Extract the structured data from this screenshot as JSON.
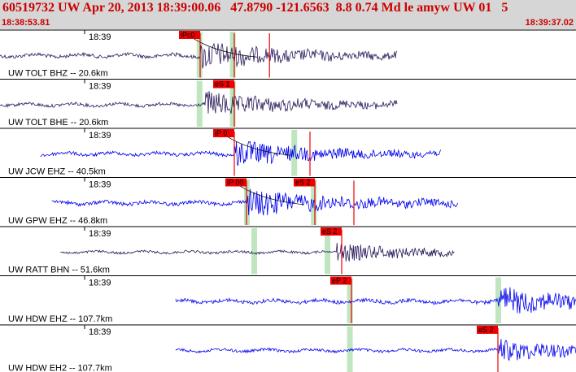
{
  "header": {
    "title": "60519732 UW Apr 20, 2013 18:39:00.06   47.8790 -121.6563  8.8 0.74 Md le amyw UW 01   5",
    "start_time": "18:38:53.81",
    "end_time": "18:39:37.02"
  },
  "colors": {
    "header_bg": "#d6d6d6",
    "header_text": "#cc0000",
    "trace_dark": "#2a1a5a",
    "trace_blue": "#0000ee",
    "pick": "#ee0000",
    "window": "#bfe6bf"
  },
  "traces": [
    {
      "id": "tolt-bhz",
      "label": "UW TOLT BHZ -- 20.6km",
      "time": "18:39",
      "color": "dark",
      "start": 0.0,
      "end": 0.69,
      "amp": 0.45,
      "onset": 0.23,
      "picks": [
        {
          "label": "iPc0",
          "pos": 0.23,
          "box": "left"
        },
        {
          "label": "",
          "pos": 0.3,
          "box": "none"
        },
        {
          "label": "",
          "pos": 0.372,
          "box": "none"
        }
      ],
      "windows": [
        0.228,
        0.296
      ],
      "curve": true
    },
    {
      "id": "tolt-bhe",
      "label": "UW TOLT BHE -- 20.6km",
      "time": "18:39",
      "color": "dark",
      "start": 0.0,
      "end": 0.69,
      "amp": 0.4,
      "onset": 0.24,
      "picks": [
        {
          "label": "eS 1",
          "pos": 0.3,
          "box": "left"
        }
      ],
      "windows": [
        0.228,
        0.296
      ],
      "curve": false
    },
    {
      "id": "jcw-ehz",
      "label": "UW JCW EHZ -- 40.5km",
      "time": "18:39",
      "color": "blue",
      "start": 0.07,
      "end": 0.765,
      "amp": 0.42,
      "onset": 0.3,
      "picks": [
        {
          "label": "iP 0",
          "pos": 0.3,
          "box": "left"
        },
        {
          "label": "",
          "pos": 0.455,
          "box": "none"
        }
      ],
      "windows": [
        0.422
      ],
      "curve": true
    },
    {
      "id": "gpw-ehz",
      "label": "UW GPW EHZ -- 46.8km",
      "time": "18:39",
      "color": "blue",
      "start": 0.09,
      "end": 0.795,
      "amp": 0.45,
      "onset": 0.325,
      "picks": [
        {
          "label": "iP 00",
          "pos": 0.325,
          "box": "left"
        },
        {
          "label": "eS 2",
          "pos": 0.465,
          "box": "left"
        },
        {
          "label": "",
          "pos": 0.545,
          "box": "none"
        }
      ],
      "windows": [
        0.325,
        0.462
      ],
      "curve": true
    },
    {
      "id": "ratt-bhn",
      "label": "UW RATT BHN -- 51.6km",
      "time": "18:39",
      "color": "dark",
      "start": 0.105,
      "end": 0.79,
      "amp": 0.3,
      "onset": 0.51,
      "picks": [
        {
          "label": "eS 2",
          "pos": 0.52,
          "box": "left"
        }
      ],
      "windows": [
        0.34,
        0.49
      ],
      "curve": false
    },
    {
      "id": "hdw-ehz",
      "label": "UW HDW EHZ -- 107.7km",
      "time": "18:39",
      "color": "blue",
      "start": 0.305,
      "end": 1.0,
      "amp": 0.45,
      "onset": 0.84,
      "picks": [
        {
          "label": "eP 2",
          "pos": 0.54,
          "box": "left"
        }
      ],
      "windows": [
        0.536,
        0.84
      ],
      "curve": false
    },
    {
      "id": "hdw-eh2",
      "label": "UW HDW EH2 -- 107.7km",
      "time": "18:39",
      "color": "blue",
      "start": 0.305,
      "end": 1.0,
      "amp": 0.35,
      "onset": 0.84,
      "picks": [
        {
          "label": "eS 2",
          "pos": 0.84,
          "box": "left"
        }
      ],
      "windows": [
        0.536
      ],
      "curve": false
    }
  ]
}
